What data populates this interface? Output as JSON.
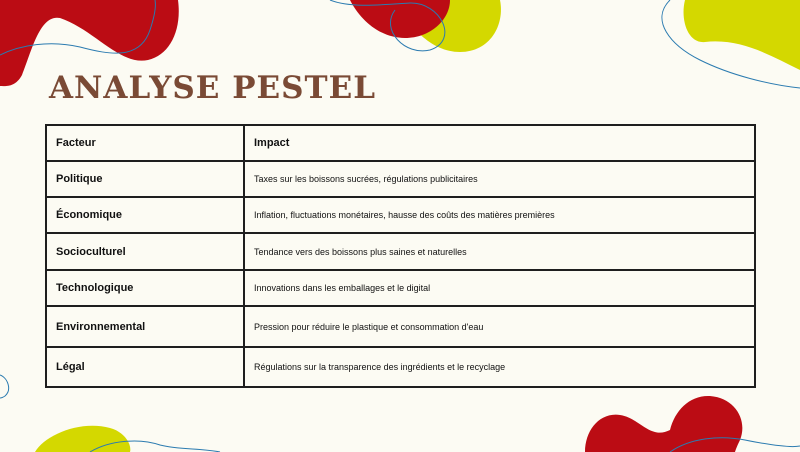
{
  "title": "ANALYSE PESTEL",
  "table": {
    "headers": [
      "Facteur",
      "Impact"
    ],
    "rows": [
      {
        "factor": "Politique",
        "impact": "Taxes sur les boissons sucrées, régulations publicitaires"
      },
      {
        "factor": "Économique",
        "impact": "Inflation, fluctuations monétaires, hausse des coûts des matières premières"
      },
      {
        "factor": "Socioculturel",
        "impact": "Tendance vers des boissons plus saines et naturelles"
      },
      {
        "factor": "Technologique",
        "impact": "Innovations dans les emballages et le digital"
      },
      {
        "factor": "Environnemental",
        "impact": "Pression pour réduire le plastique et consommation d'eau"
      },
      {
        "factor": "Légal",
        "impact": "Régulations sur la transparence des ingrédients et le recyclage"
      }
    ]
  },
  "colors": {
    "background": "#fcfbf3",
    "red": "#bb0c14",
    "lime": "#d4d800",
    "blue_line": "#2b7bb0",
    "title": "#7a4a35"
  }
}
